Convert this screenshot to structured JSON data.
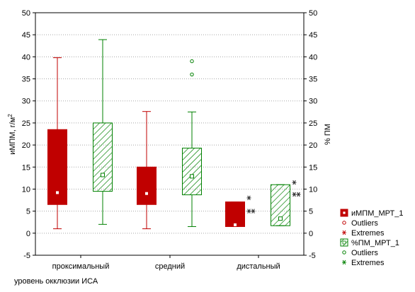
{
  "chart_data": {
    "type": "boxplot",
    "xlabel": "уровень окклюзии ИСА",
    "ylabel_left": "иМПМ, г/м",
    "ylabel_left_sup": "2",
    "ylabel_right": "% ПМ",
    "ylim": [
      -5,
      50
    ],
    "yticks": [
      "-5",
      "0",
      "5",
      "10",
      "15",
      "20",
      "25",
      "30",
      "35",
      "40",
      "45",
      "50"
    ],
    "categories": [
      "проксимальный",
      "средний",
      "дистальный"
    ],
    "grid": true,
    "legend_position": "right",
    "series": [
      {
        "name": "иМПМ_МРТ_1",
        "color": "#c00000",
        "fill": "solid",
        "boxes": [
          {
            "whisker_low": 1.0,
            "q1": 6.5,
            "median": 9.2,
            "q3": 23.5,
            "whisker_high": 39.8,
            "outliers": [],
            "extremes": []
          },
          {
            "whisker_low": 1.0,
            "q1": 6.5,
            "median": 9.0,
            "q3": 15.0,
            "whisker_high": 27.6,
            "outliers": [],
            "extremes": []
          },
          {
            "whisker_low": 1.5,
            "q1": 1.5,
            "median": 1.9,
            "q3": 7.1,
            "whisker_high": 7.1,
            "outliers": [],
            "extremes": [
              8.0,
              5.0,
              5.0
            ]
          }
        ]
      },
      {
        "name": "%ПМ_МРТ_1",
        "color": "#008000",
        "fill": "hatched",
        "boxes": [
          {
            "whisker_low": 2.0,
            "q1": 9.5,
            "median": 13.2,
            "q3": 25.0,
            "whisker_high": 43.9,
            "outliers": [],
            "extremes": []
          },
          {
            "whisker_low": 1.5,
            "q1": 8.7,
            "median": 12.9,
            "q3": 19.3,
            "whisker_high": 27.5,
            "outliers": [
              39.0,
              36.0
            ],
            "extremes": []
          },
          {
            "whisker_low": 1.7,
            "q1": 1.7,
            "median": 3.3,
            "q3": 11.0,
            "whisker_high": 11.0,
            "outliers": [],
            "extremes": [
              11.5,
              8.8,
              8.8
            ]
          }
        ]
      }
    ],
    "legend": {
      "entries": [
        {
          "label": "иМПМ_МРТ_1",
          "kind": "box",
          "series": 0
        },
        {
          "label": "Outliers",
          "kind": "outlier",
          "series": 0
        },
        {
          "label": "Extremes",
          "kind": "extreme",
          "series": 0
        },
        {
          "label": "%ПМ_МРТ_1",
          "kind": "box",
          "series": 1
        },
        {
          "label": "Outliers",
          "kind": "outlier",
          "series": 1
        },
        {
          "label": "Extremes",
          "kind": "extreme",
          "series": 1
        }
      ]
    }
  }
}
